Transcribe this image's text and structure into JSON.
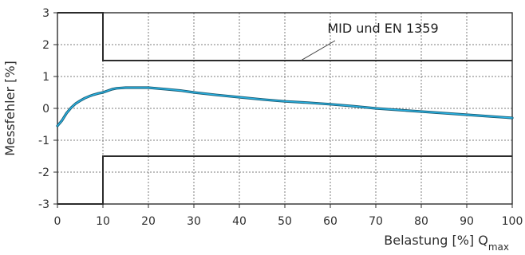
{
  "chart_data": {
    "type": "line",
    "title": "",
    "xlabel": "Belastung [%] Q",
    "xlabel_subscript": "max",
    "ylabel": "Messfehler [%]",
    "xlim": [
      0,
      100
    ],
    "ylim": [
      -3,
      3
    ],
    "x_ticks": [
      0,
      10,
      20,
      30,
      40,
      50,
      60,
      70,
      80,
      90,
      100
    ],
    "y_ticks": [
      3,
      2,
      1,
      0,
      -1,
      -2,
      -3
    ],
    "x_tick_labels": [
      "0",
      "10",
      "20",
      "30",
      "40",
      "50",
      "60",
      "70",
      "80",
      "90",
      "100"
    ],
    "y_tick_labels": [
      "3",
      "2",
      "1",
      "0",
      "-1",
      "-2",
      "-3"
    ],
    "grid": true,
    "legend": "none",
    "colors": {
      "frame": "#2d2d2d",
      "grid": "#7e7e7e",
      "limit": "#2b2b2b",
      "curve_dark": "#1a5b72",
      "curve_light": "#29b4e6"
    },
    "annotation": {
      "text": "MID und EN 1359"
    },
    "series": [
      {
        "values": [
          {
            "x": 0,
            "y": -0.55
          },
          {
            "x": 1,
            "y": -0.38
          },
          {
            "x": 2,
            "y": -0.15
          },
          {
            "x": 3,
            "y": 0.02
          },
          {
            "x": 4,
            "y": 0.15
          },
          {
            "x": 5,
            "y": 0.24
          },
          {
            "x": 6,
            "y": 0.32
          },
          {
            "x": 7,
            "y": 0.38
          },
          {
            "x": 8,
            "y": 0.43
          },
          {
            "x": 9,
            "y": 0.47
          },
          {
            "x": 10,
            "y": 0.5
          },
          {
            "x": 11,
            "y": 0.55
          },
          {
            "x": 12,
            "y": 0.6
          },
          {
            "x": 13,
            "y": 0.63
          },
          {
            "x": 15,
            "y": 0.65
          },
          {
            "x": 18,
            "y": 0.65
          },
          {
            "x": 20,
            "y": 0.65
          },
          {
            "x": 24,
            "y": 0.6
          },
          {
            "x": 27,
            "y": 0.56
          },
          {
            "x": 30,
            "y": 0.5
          },
          {
            "x": 35,
            "y": 0.42
          },
          {
            "x": 40,
            "y": 0.35
          },
          {
            "x": 45,
            "y": 0.28
          },
          {
            "x": 50,
            "y": 0.22
          },
          {
            "x": 55,
            "y": 0.18
          },
          {
            "x": 60,
            "y": 0.13
          },
          {
            "x": 65,
            "y": 0.07
          },
          {
            "x": 70,
            "y": 0.0
          },
          {
            "x": 75,
            "y": -0.05
          },
          {
            "x": 80,
            "y": -0.1
          },
          {
            "x": 85,
            "y": -0.15
          },
          {
            "x": 90,
            "y": -0.2
          },
          {
            "x": 95,
            "y": -0.25
          },
          {
            "x": 100,
            "y": -0.3
          }
        ]
      }
    ],
    "limit_lines": {
      "upper": [
        {
          "x": 0,
          "y": 3
        },
        {
          "x": 10,
          "y": 3
        },
        {
          "x": 10,
          "y": 1.5
        },
        {
          "x": 100,
          "y": 1.5
        }
      ],
      "lower": [
        {
          "x": 0,
          "y": -3
        },
        {
          "x": 10,
          "y": -3
        },
        {
          "x": 10,
          "y": -1.5
        },
        {
          "x": 100,
          "y": -1.5
        }
      ]
    }
  }
}
